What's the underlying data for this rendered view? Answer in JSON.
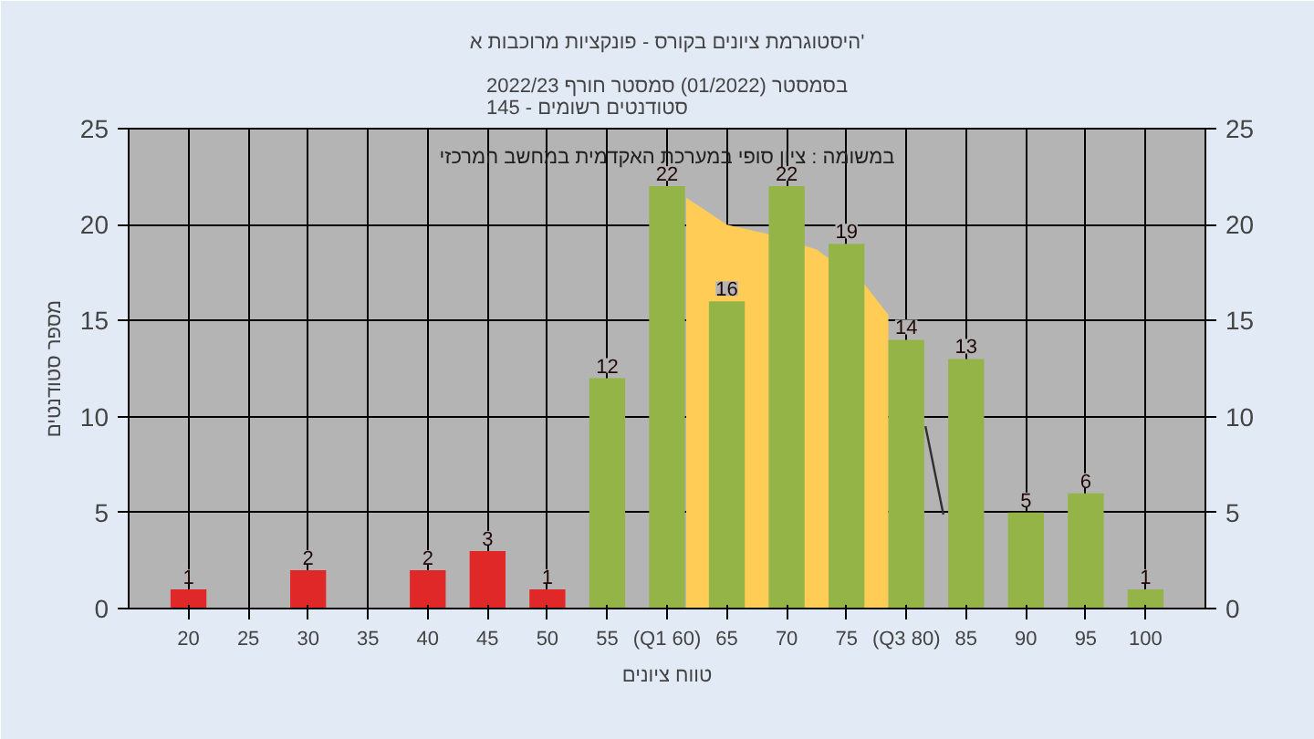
{
  "chart_data": {
    "type": "bar",
    "title": "היסטוגרמת ציונים בקורס - פונקציות מרוכבות א'",
    "subtitle": "בסמסטר (01/2022) סמסטר חורף 2022/23\nסטודנטים רשומים - 145",
    "xlabel": "טווח ציונים",
    "ylabel": "מספר סטודנטים",
    "annotations": [
      "במשומה : ציון סופי במערכת האקדמית במחשב המרכזי"
    ],
    "series": [
      {
        "type": "area",
        "color": "#ffcc55",
        "x": [
          61.6,
          65,
          68.5,
          72.5,
          76.5,
          78.5
        ],
        "values": [
          21.4,
          20,
          19.5,
          18.7,
          16.9,
          15.3
        ]
      },
      {
        "type": "line",
        "color": "#303030",
        "x": [
          81.6,
          83.1
        ],
        "values": [
          9.5,
          4.9
        ]
      },
      {
        "x": [
          20,
          30,
          40,
          45,
          50,
          55,
          60,
          65,
          70,
          75,
          80,
          85,
          90,
          95,
          100
        ],
        "values": [
          1,
          2,
          2,
          3,
          1,
          12,
          22,
          16,
          22,
          19,
          14,
          13,
          5,
          6,
          1
        ],
        "colors": [
          "#e02828",
          "#e02828",
          "#e02828",
          "#e02828",
          "#e02828",
          "#94b448",
          "#94b448",
          "#94b448",
          "#94b448",
          "#94b448",
          "#94b448",
          "#94b448",
          "#94b448",
          "#94b448",
          "#94b448"
        ],
        "value_labels": [
          "1",
          "2",
          "2",
          "3",
          "1",
          "12",
          "22",
          "16",
          "22",
          "19",
          "14",
          "13",
          "5",
          "6",
          "1"
        ]
      }
    ],
    "xlim": [
      15,
      105
    ],
    "xticks": [
      20,
      25,
      30,
      35,
      40,
      45,
      50,
      55,
      {
        "value": 60,
        "label": "(Q1 60)"
      },
      65,
      70,
      75,
      {
        "value": 80,
        "label": "(Q3 80)"
      },
      85,
      90,
      95,
      100
    ],
    "ylim": [
      0,
      25
    ],
    "yticks": [
      0,
      5,
      10,
      15,
      20,
      25
    ],
    "y2lim": [
      0,
      25
    ],
    "y2ticks": [
      0,
      5,
      10,
      15,
      20,
      25
    ],
    "grid": true
  }
}
